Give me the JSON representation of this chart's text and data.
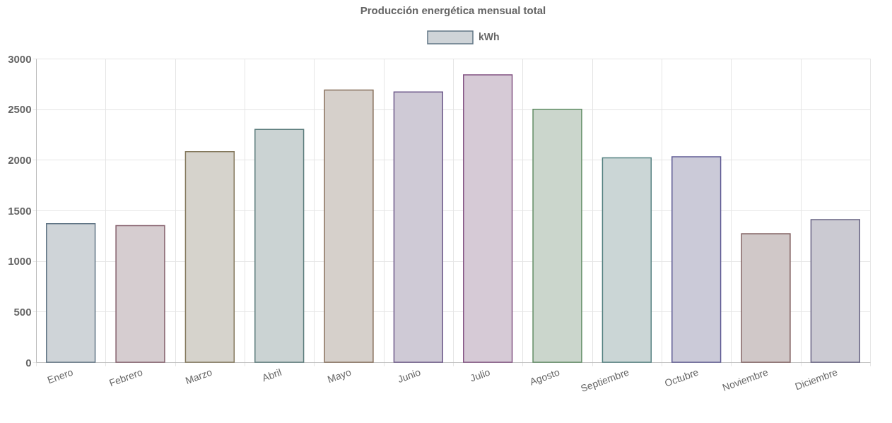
{
  "chart_data": {
    "type": "bar",
    "title": "Producción energética mensual total",
    "categories": [
      "Enero",
      "Febrero",
      "Marzo",
      "Abril",
      "Mayo",
      "Junio",
      "Julio",
      "Agosto",
      "Septiembre",
      "Octubre",
      "Noviembre",
      "Diciembre"
    ],
    "series": [
      {
        "name": "kWh",
        "values": [
          1370,
          1350,
          2080,
          2300,
          2690,
          2670,
          2840,
          2500,
          2020,
          2030,
          1270,
          1410
        ],
        "colors": [
          "#cfd4d8",
          "#d6cdd0",
          "#d6d3cc",
          "#cbd3d3",
          "#d6d0cb",
          "#cfcad6",
          "#d6cad6",
          "#cbd6cc",
          "#cbd6d6",
          "#cbcad8",
          "#d0c8c8",
          "#cbcad2"
        ]
      }
    ],
    "ylim": [
      0,
      3000
    ],
    "yticks": [
      0,
      500,
      1000,
      1500,
      2000,
      2500,
      3000
    ],
    "grid": true,
    "legend": "top"
  }
}
